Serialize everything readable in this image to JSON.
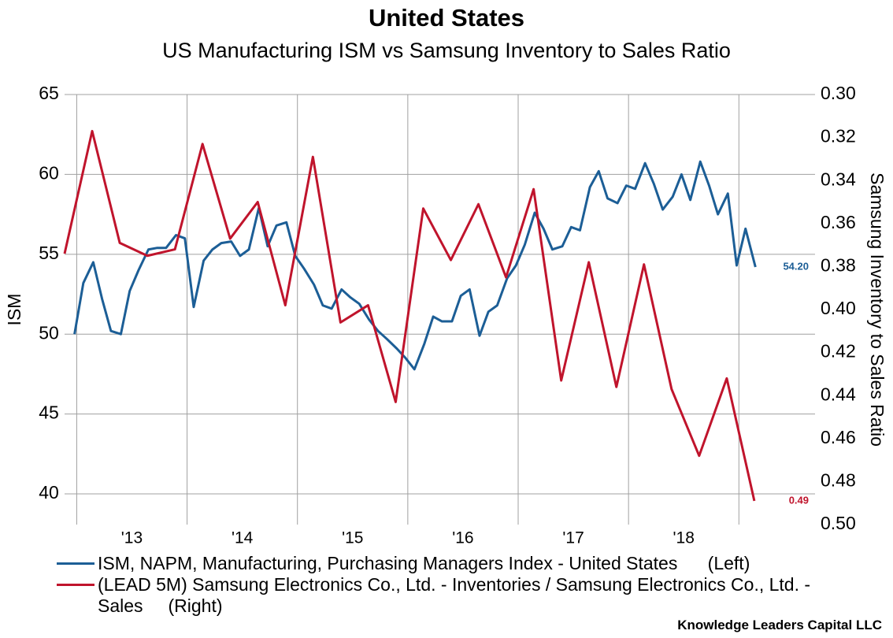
{
  "chart_data": {
    "type": "line",
    "title": "United States",
    "subtitle": "US Manufacturing ISM vs Samsung Inventory to Sales Ratio",
    "y_label": "ISM",
    "y2_label": "Samsung Inventory to Sales Ratio",
    "source": "Knowledge Leaders Capital LLC",
    "xlim": [
      2012.89,
      2019.69
    ],
    "xticks": [
      {
        "value": 2013,
        "label": "'13"
      },
      {
        "value": 2014,
        "label": "'14"
      },
      {
        "value": 2015,
        "label": "'15"
      },
      {
        "value": 2016,
        "label": "'16"
      },
      {
        "value": 2017,
        "label": "'17"
      },
      {
        "value": 2018,
        "label": "'18"
      },
      {
        "value": 2019,
        "label": null
      }
    ],
    "ylim": [
      38.08,
      65
    ],
    "yticks": [
      40,
      45,
      50,
      55,
      60,
      65
    ],
    "y2lim": [
      0.5,
      0.3
    ],
    "y2ticks": [
      {
        "value": 0.3,
        "label": "0.30"
      },
      {
        "value": 0.32,
        "label": "0.32"
      },
      {
        "value": 0.34,
        "label": "0.34"
      },
      {
        "value": 0.36,
        "label": "0.36"
      },
      {
        "value": 0.38,
        "label": "0.38"
      },
      {
        "value": 0.4,
        "label": "0.40"
      },
      {
        "value": 0.42,
        "label": "0.42"
      },
      {
        "value": 0.44,
        "label": "0.44"
      },
      {
        "value": 0.46,
        "label": "0.46"
      },
      {
        "value": 0.48,
        "label": "0.48"
      },
      {
        "value": 0.5,
        "label": "0.50"
      }
    ],
    "grid": true,
    "series": [
      {
        "name": "ISM, NAPM, Manufacturing, Purchasing Managers Index - United States      (Left)",
        "color": "#1c5e96",
        "axis": "y",
        "x": [
          2012.98,
          2013.06,
          2013.15,
          2013.23,
          2013.31,
          2013.4,
          2013.48,
          2013.56,
          2013.65,
          2013.73,
          2013.81,
          2013.9,
          2013.98,
          2014.06,
          2014.15,
          2014.23,
          2014.31,
          2014.4,
          2014.48,
          2014.56,
          2014.65,
          2014.73,
          2014.81,
          2014.9,
          2014.98,
          2015.06,
          2015.15,
          2015.23,
          2015.31,
          2015.4,
          2015.48,
          2015.56,
          2015.65,
          2015.73,
          2015.81,
          2015.9,
          2015.98,
          2016.06,
          2016.15,
          2016.23,
          2016.31,
          2016.4,
          2016.48,
          2016.56,
          2016.65,
          2016.73,
          2016.81,
          2016.9,
          2016.98,
          2017.06,
          2017.15,
          2017.23,
          2017.31,
          2017.4,
          2017.48,
          2017.56,
          2017.65,
          2017.73,
          2017.81,
          2017.9,
          2017.98,
          2018.06,
          2018.15,
          2018.23,
          2018.31,
          2018.4,
          2018.48,
          2018.56,
          2018.65,
          2018.73,
          2018.81,
          2018.9,
          2018.98,
          2019.06,
          2019.15
        ],
        "values": [
          50.0,
          53.2,
          54.5,
          52.2,
          50.2,
          50.0,
          52.7,
          54.0,
          55.3,
          55.4,
          55.4,
          56.2,
          56.0,
          51.7,
          54.6,
          55.3,
          55.7,
          55.8,
          54.9,
          55.3,
          57.9,
          55.5,
          56.8,
          57.0,
          54.9,
          54.1,
          53.1,
          51.8,
          51.6,
          52.8,
          52.3,
          51.9,
          50.9,
          50.2,
          49.7,
          49.1,
          48.5,
          47.8,
          49.4,
          51.1,
          50.8,
          50.8,
          52.4,
          52.8,
          49.9,
          51.4,
          51.8,
          53.5,
          54.3,
          55.6,
          57.6,
          56.6,
          55.3,
          55.5,
          56.7,
          56.5,
          59.2,
          60.2,
          58.5,
          58.2,
          59.3,
          59.1,
          60.7,
          59.4,
          57.8,
          58.6,
          60.0,
          58.4,
          60.8,
          59.3,
          57.5,
          58.8,
          54.3,
          56.6,
          54.2
        ],
        "value_labels": [
          null,
          null,
          null,
          null,
          null,
          null,
          null,
          null,
          null,
          null,
          null,
          null,
          null,
          null,
          null,
          null,
          null,
          null,
          null,
          null,
          null,
          null,
          null,
          null,
          null,
          null,
          null,
          null,
          null,
          null,
          null,
          null,
          null,
          null,
          null,
          null,
          null,
          null,
          null,
          null,
          null,
          null,
          null,
          null,
          null,
          null,
          null,
          null,
          null,
          null,
          null,
          null,
          null,
          null,
          null,
          null,
          null,
          null,
          null,
          null,
          null,
          null,
          null,
          null,
          null,
          null,
          null,
          null,
          null,
          null,
          null,
          null,
          null,
          null,
          "54.20"
        ]
      },
      {
        "name": "(LEAD 5M) Samsung Electronics Co., Ltd. - Inventories / Samsung Electronics Co., Ltd. - Sales     (Right)",
        "color": "#c0142c",
        "axis": "y2",
        "x": [
          2012.89,
          2013.14,
          2013.39,
          2013.64,
          2013.89,
          2014.14,
          2014.39,
          2014.64,
          2014.89,
          2015.14,
          2015.39,
          2015.64,
          2015.89,
          2016.14,
          2016.39,
          2016.64,
          2016.89,
          2017.14,
          2017.39,
          2017.64,
          2017.89,
          2018.14,
          2018.39,
          2018.64,
          2018.89,
          2019.14
        ],
        "values": [
          0.374,
          0.317,
          0.369,
          0.375,
          0.372,
          0.323,
          0.367,
          0.35,
          0.398,
          0.329,
          0.406,
          0.398,
          0.443,
          0.353,
          0.377,
          0.351,
          0.385,
          0.344,
          0.433,
          0.378,
          0.436,
          0.379,
          0.437,
          0.468,
          0.432,
          0.489
        ],
        "value_labels": [
          null,
          null,
          null,
          null,
          null,
          null,
          null,
          null,
          null,
          null,
          null,
          null,
          null,
          null,
          null,
          null,
          null,
          null,
          null,
          null,
          null,
          null,
          null,
          null,
          null,
          "0.49"
        ]
      }
    ]
  }
}
